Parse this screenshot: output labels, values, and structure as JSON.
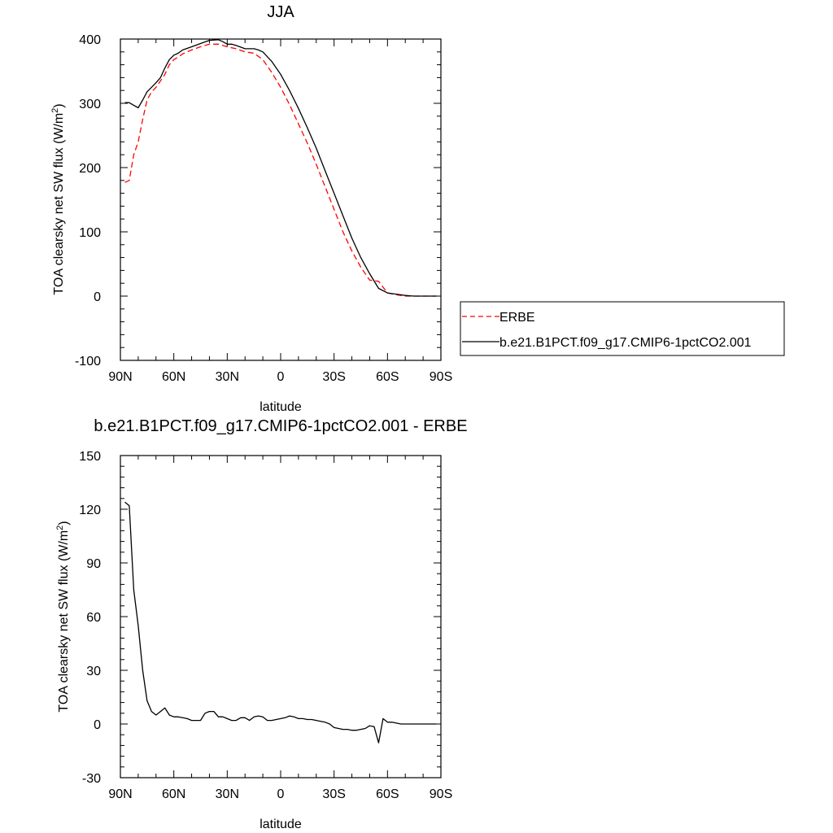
{
  "chart_data": [
    {
      "type": "line",
      "title": "JJA",
      "xlabel": "latitude",
      "ylabel": "TOA clearsky net SW flux (W/m",
      "ylabel_sup": "2",
      "ylabel_close": ")",
      "xlim": [
        90,
        -90
      ],
      "ylim": [
        -100,
        400
      ],
      "x_ticks": [
        90,
        60,
        30,
        0,
        -30,
        -60,
        -90
      ],
      "x_tick_labels": [
        "90N",
        "60N",
        "30N",
        "0",
        "30S",
        "60S",
        "90S"
      ],
      "y_ticks": [
        -100,
        0,
        100,
        200,
        300,
        400
      ],
      "y_tick_labels": [
        "-100",
        "0",
        "100",
        "200",
        "300",
        "400"
      ],
      "legend": {
        "placement": "right",
        "entries": [
          "ERBE",
          "b.e21.B1PCT.f09_g17.CMIP6-1pctCO2.001"
        ]
      },
      "series": [
        {
          "name": "ERBE",
          "color": "#ff0000",
          "dash": true,
          "x": [
            87.5,
            85,
            82.5,
            80,
            77.5,
            75,
            72.5,
            70,
            67.5,
            65,
            62.5,
            60,
            57.5,
            55,
            50,
            45,
            40,
            35,
            30,
            25,
            20,
            15,
            10,
            5,
            0,
            -5,
            -10,
            -15,
            -20,
            -25,
            -30,
            -35,
            -40,
            -45,
            -50,
            -55,
            -60,
            -65,
            -67.5,
            -70,
            -75,
            -80,
            -85,
            -87.5
          ],
          "y": [
            177,
            180,
            220,
            240,
            275,
            305,
            318,
            325,
            335,
            345,
            360,
            368,
            372,
            377,
            383,
            388,
            392,
            392,
            388,
            385,
            380,
            378,
            368,
            348,
            325,
            298,
            268,
            238,
            205,
            170,
            135,
            100,
            70,
            45,
            25,
            23,
            5,
            2,
            1,
            0,
            0,
            0,
            0,
            0
          ]
        },
        {
          "name": "b.e21.B1PCT.f09_g17.CMIP6-1pctCO2.001",
          "color": "#000000",
          "dash": false,
          "x": [
            87.5,
            85,
            82.5,
            80,
            77.5,
            75,
            72.5,
            70,
            67.5,
            65,
            62.5,
            60,
            57.5,
            55,
            50,
            45,
            40,
            35,
            32.5,
            30,
            27.5,
            25,
            20,
            15,
            12.5,
            10,
            5,
            0,
            -5,
            -10,
            -15,
            -20,
            -25,
            -30,
            -35,
            -40,
            -45,
            -50,
            -55,
            -60,
            -65,
            -67.5,
            -70,
            -75,
            -80,
            -85,
            -87.5
          ],
          "y": [
            301,
            301,
            297,
            293,
            305,
            318,
            325,
            332,
            340,
            355,
            368,
            375,
            378,
            383,
            388,
            393,
            398,
            399,
            396,
            392,
            392,
            390,
            385,
            385,
            383,
            380,
            365,
            345,
            320,
            292,
            262,
            230,
            195,
            160,
            125,
            90,
            60,
            35,
            12,
            5,
            3,
            2,
            1,
            0,
            0,
            0,
            0
          ]
        }
      ]
    },
    {
      "type": "line",
      "title": "b.e21.B1PCT.f09_g17.CMIP6-1pctCO2.001 - ERBE",
      "xlabel": "latitude",
      "ylabel": "TOA clearsky net SW flux (W/m",
      "ylabel_sup": "2",
      "ylabel_close": ")",
      "xlim": [
        90,
        -90
      ],
      "ylim": [
        -30,
        150
      ],
      "x_ticks": [
        90,
        60,
        30,
        0,
        -30,
        -60,
        -90
      ],
      "x_tick_labels": [
        "90N",
        "60N",
        "30N",
        "0",
        "30S",
        "60S",
        "90S"
      ],
      "y_ticks": [
        -30,
        0,
        30,
        60,
        90,
        120,
        150
      ],
      "y_tick_labels": [
        "-30",
        "0",
        "30",
        "60",
        "90",
        "120",
        "150"
      ],
      "series": [
        {
          "color": "#000000",
          "dash": false,
          "x": [
            87.5,
            85,
            82.5,
            80,
            77.5,
            75,
            72.5,
            70,
            67.5,
            65,
            62.5,
            60,
            57.5,
            55,
            52.5,
            50,
            47.5,
            45,
            42.5,
            40,
            37.5,
            35,
            32.5,
            30,
            27.5,
            25,
            22.5,
            20,
            17.5,
            15,
            12.5,
            10,
            7.5,
            5,
            2.5,
            0,
            -2.5,
            -5,
            -7.5,
            -10,
            -12.5,
            -15,
            -17.5,
            -20,
            -22.5,
            -25,
            -27.5,
            -30,
            -32.5,
            -35,
            -37.5,
            -40,
            -42.5,
            -45,
            -47.5,
            -50,
            -52.5,
            -55,
            -57.5,
            -60,
            -62.5,
            -65,
            -67.5,
            -70,
            -72.5,
            -75,
            -77.5,
            -80,
            -82.5,
            -85,
            -87.5
          ],
          "y": [
            124,
            122,
            75,
            55,
            30,
            13,
            7,
            5,
            7,
            9,
            5,
            4,
            4,
            3.5,
            3,
            2,
            2,
            2,
            6,
            7,
            7,
            4,
            4,
            3,
            2,
            2,
            3.5,
            3.5,
            2,
            4,
            4.5,
            4,
            2,
            2,
            2.5,
            3,
            3.5,
            4.5,
            4,
            3,
            3,
            2.5,
            2.5,
            2,
            1.5,
            1,
            0,
            -2,
            -2.5,
            -3,
            -3,
            -3.5,
            -3.5,
            -3,
            -2.5,
            -1,
            -1.5,
            -10.5,
            3,
            1,
            1,
            0.5,
            0,
            0,
            0,
            0,
            0,
            0,
            0,
            0,
            0
          ]
        }
      ]
    }
  ]
}
